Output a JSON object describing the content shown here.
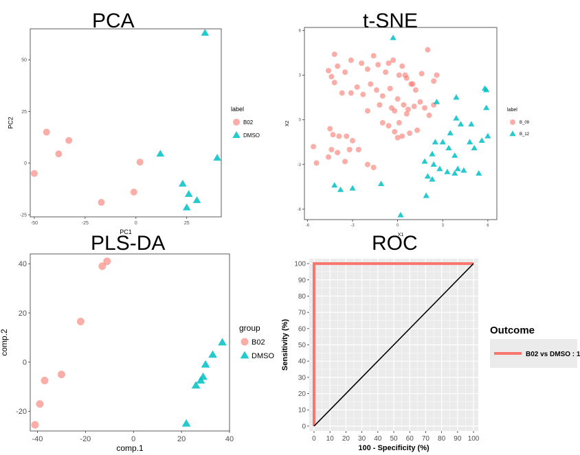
{
  "titles": {
    "pca": "PCA",
    "tsne": "t-SNE",
    "plsda": "PLS-DA",
    "roc": "ROC"
  },
  "colors": {
    "salmon": "#F8766D",
    "teal": "#00BFC4",
    "roc_line": "#F8766D"
  },
  "chart_data": [
    {
      "id": "pca",
      "type": "scatter",
      "title": "PCA",
      "xlabel": "PC1",
      "ylabel": "PC2",
      "xlim": [
        -52,
        42
      ],
      "ylim": [
        -26,
        65
      ],
      "xticks": [
        -50,
        -25,
        0,
        25
      ],
      "yticks": [
        -25,
        0,
        25,
        50
      ],
      "legend_title": "label",
      "legend_position": "right",
      "series": [
        {
          "name": "B02",
          "shape": "circle",
          "color": "#F8766D",
          "points": [
            [
              -50,
              -5
            ],
            [
              -44,
              15
            ],
            [
              -38,
              4.5
            ],
            [
              -33,
              11
            ],
            [
              2,
              0.5
            ],
            [
              -1,
              -14
            ],
            [
              -17,
              -19
            ]
          ]
        },
        {
          "name": "DMSO",
          "shape": "triangle",
          "color": "#00BFC4",
          "points": [
            [
              34,
              63
            ],
            [
              12,
              4.5
            ],
            [
              40,
              2.5
            ],
            [
              23,
              -10
            ],
            [
              26,
              -15
            ],
            [
              30,
              -18
            ],
            [
              25,
              -21.5
            ]
          ]
        }
      ]
    },
    {
      "id": "tsne",
      "type": "scatter",
      "title": "t-SNE",
      "xlabel": "X1",
      "ylabel": "X2",
      "xlim": [
        -6.2,
        6.6
      ],
      "ylim": [
        -6.7,
        6.2
      ],
      "xticks": [
        -6,
        -3,
        0,
        3,
        6
      ],
      "yticks": [
        -6,
        -3,
        0,
        3,
        6
      ],
      "legend_title": "label",
      "legend_position": "right",
      "series": [
        {
          "name": "B_09",
          "shape": "circle",
          "color": "#F8766D",
          "points": [
            [
              -4.2,
              4.4
            ],
            [
              -4.6,
              3.3
            ],
            [
              -4.0,
              3.6
            ],
            [
              -3.5,
              3.2
            ],
            [
              -3.1,
              4.0
            ],
            [
              -2.4,
              3.8
            ],
            [
              -2.0,
              3.4
            ],
            [
              -1.6,
              4.3
            ],
            [
              -1.3,
              3.7
            ],
            [
              -0.8,
              3.2
            ],
            [
              -0.6,
              3.8
            ],
            [
              -0.3,
              4.0
            ],
            [
              0.1,
              3.0
            ],
            [
              0.3,
              3.6
            ],
            [
              0.6,
              2.8
            ],
            [
              0.9,
              2.4
            ],
            [
              1.2,
              2.0
            ],
            [
              1.6,
              3.1
            ],
            [
              2.0,
              4.7
            ],
            [
              2.4,
              2.6
            ],
            [
              2.6,
              3.0
            ],
            [
              -4.4,
              2.9
            ],
            [
              -4.2,
              2.5
            ],
            [
              -3.7,
              1.8
            ],
            [
              -3.1,
              1.8
            ],
            [
              -2.7,
              2.2
            ],
            [
              -2.3,
              1.7
            ],
            [
              -1.8,
              2.4
            ],
            [
              -1.4,
              2.0
            ],
            [
              -1.0,
              1.6
            ],
            [
              -0.5,
              2.1
            ],
            [
              0.0,
              1.4
            ],
            [
              0.4,
              1.0
            ],
            [
              0.7,
              0.7
            ],
            [
              1.1,
              0.9
            ],
            [
              1.5,
              1.2
            ],
            [
              1.8,
              0.8
            ],
            [
              2.1,
              0.3
            ],
            [
              2.4,
              1.0
            ],
            [
              -4.5,
              -0.6
            ],
            [
              -4.3,
              -1.0
            ],
            [
              -3.9,
              -1.1
            ],
            [
              -4.4,
              -2.0
            ],
            [
              -4.0,
              -2.2
            ],
            [
              -3.4,
              -1.1
            ],
            [
              -3.0,
              -1.4
            ],
            [
              -3.2,
              -2.0
            ],
            [
              -2.6,
              -2.0
            ],
            [
              -2.0,
              -3.0
            ],
            [
              -1.6,
              -3.2
            ],
            [
              -5.4,
              -2.9
            ],
            [
              -5.6,
              -1.8
            ],
            [
              -4.6,
              -2.5
            ],
            [
              -3.5,
              -2.8
            ],
            [
              -0.6,
              -0.4
            ],
            [
              -0.2,
              -0.8
            ],
            [
              0.3,
              -1.1
            ],
            [
              0.8,
              -0.9
            ],
            [
              1.3,
              -0.7
            ],
            [
              -1.0,
              -0.2
            ],
            [
              0.1,
              -0.2
            ],
            [
              -0.2,
              0.6
            ],
            [
              0.6,
              0.4
            ],
            [
              -2.0,
              0.6
            ],
            [
              -1.2,
              1.0
            ],
            [
              -0.4,
              0.8
            ],
            [
              0.5,
              3.0
            ],
            [
              1.0,
              2.4
            ],
            [
              0.0,
              -1.2
            ]
          ]
        },
        {
          "name": "B_12",
          "shape": "triangle",
          "color": "#00BFC4",
          "points": [
            [
              -0.3,
              5.5
            ],
            [
              5.8,
              2.1
            ],
            [
              5.9,
              2.0
            ],
            [
              3.9,
              1.5
            ],
            [
              5.9,
              0.8
            ],
            [
              2.6,
              1.2
            ],
            [
              3.9,
              0.1
            ],
            [
              4.2,
              -0.3
            ],
            [
              4.9,
              -0.3
            ],
            [
              3.5,
              -0.9
            ],
            [
              4.8,
              -1.5
            ],
            [
              5.6,
              -1.4
            ],
            [
              6.0,
              -1.1
            ],
            [
              3.0,
              -1.5
            ],
            [
              2.5,
              -1.5
            ],
            [
              3.4,
              -1.9
            ],
            [
              2.3,
              -2.3
            ],
            [
              3.8,
              -2.4
            ],
            [
              5.1,
              -1.9
            ],
            [
              1.8,
              -2.8
            ],
            [
              2.4,
              -3.0
            ],
            [
              2.8,
              -3.3
            ],
            [
              3.3,
              -3.5
            ],
            [
              3.8,
              -3.6
            ],
            [
              4.0,
              -3.3
            ],
            [
              5.4,
              -3.6
            ],
            [
              2.3,
              -4.0
            ],
            [
              1.9,
              -5.1
            ],
            [
              -1.1,
              -4.3
            ],
            [
              -3.8,
              -4.7
            ],
            [
              -3.0,
              -4.6
            ],
            [
              0.2,
              -6.4
            ],
            [
              -4.2,
              -4.4
            ],
            [
              4.4,
              -3.4
            ],
            [
              2.0,
              -3.8
            ]
          ]
        }
      ]
    },
    {
      "id": "plsda",
      "type": "scatter",
      "title": "PLS-DA",
      "xlabel": "comp.1",
      "ylabel": "comp.2",
      "xlim": [
        -43,
        40
      ],
      "ylim": [
        -28,
        44
      ],
      "xticks": [
        -40,
        -20,
        0,
        20,
        40
      ],
      "yticks": [
        -20,
        0,
        20,
        40
      ],
      "legend_title": "group",
      "legend_position": "right",
      "series": [
        {
          "name": "B02",
          "shape": "circle",
          "color": "#F8766D",
          "points": [
            [
              -11,
              41
            ],
            [
              -13,
              39
            ],
            [
              -22,
              16.5
            ],
            [
              -30,
              -5
            ],
            [
              -37,
              -7.5
            ],
            [
              -39,
              -17
            ],
            [
              -41,
              -25.5
            ]
          ]
        },
        {
          "name": "DMSO",
          "shape": "triangle",
          "color": "#00BFC4",
          "points": [
            [
              37,
              8
            ],
            [
              33,
              3
            ],
            [
              30,
              -1
            ],
            [
              29,
              -6
            ],
            [
              28,
              -7.5
            ],
            [
              26,
              -9.5
            ],
            [
              22,
              -25
            ]
          ]
        }
      ]
    },
    {
      "id": "roc",
      "type": "line",
      "title": "ROC",
      "xlabel": "100 - Specificity (%)",
      "ylabel": "Sensitivity (%)",
      "xlim": [
        -3,
        103
      ],
      "ylim": [
        -3,
        103
      ],
      "xticks": [
        0,
        10,
        20,
        30,
        40,
        50,
        60,
        70,
        80,
        90,
        100
      ],
      "yticks": [
        0,
        10,
        20,
        30,
        40,
        50,
        60,
        70,
        80,
        90,
        100
      ],
      "grid": true,
      "legend_title": "Outcome",
      "legend_position": "right",
      "series": [
        {
          "name": "B02 vs DMSO : 1",
          "color": "#F8766D",
          "points": [
            [
              0,
              0
            ],
            [
              0,
              100
            ],
            [
              100,
              100
            ]
          ]
        },
        {
          "name": "",
          "color": "#000000",
          "points": [
            [
              0,
              0
            ],
            [
              100,
              100
            ]
          ]
        }
      ]
    }
  ]
}
